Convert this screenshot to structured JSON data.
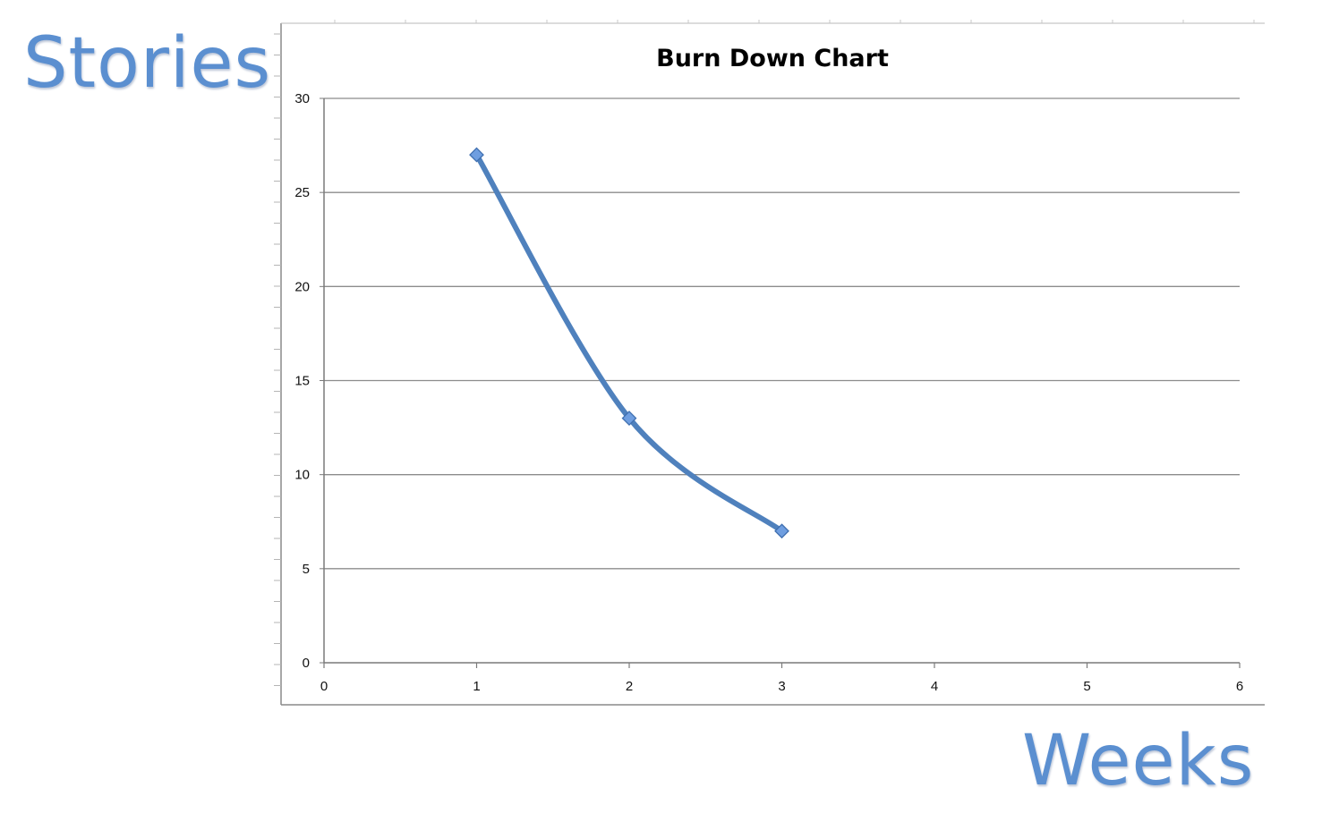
{
  "slide": {
    "y_caption": "Stories",
    "x_caption": "Weeks",
    "caption_color": "#5b8fd0"
  },
  "chart_data": {
    "type": "line",
    "title": "Burn Down Chart",
    "xlabel": "",
    "ylabel": "",
    "xlim": [
      0,
      6
    ],
    "ylim": [
      0,
      30
    ],
    "x_ticks": [
      0,
      1,
      2,
      3,
      4,
      5,
      6
    ],
    "y_ticks": [
      0,
      5,
      10,
      15,
      20,
      25,
      30
    ],
    "grid": "horizontal",
    "smooth": true,
    "series": [
      {
        "x": [
          1,
          2,
          3
        ],
        "values": [
          27,
          13,
          7
        ],
        "color": "#4f81bd",
        "marker": "diamond",
        "marker_color": "#6f9ee0"
      }
    ]
  }
}
